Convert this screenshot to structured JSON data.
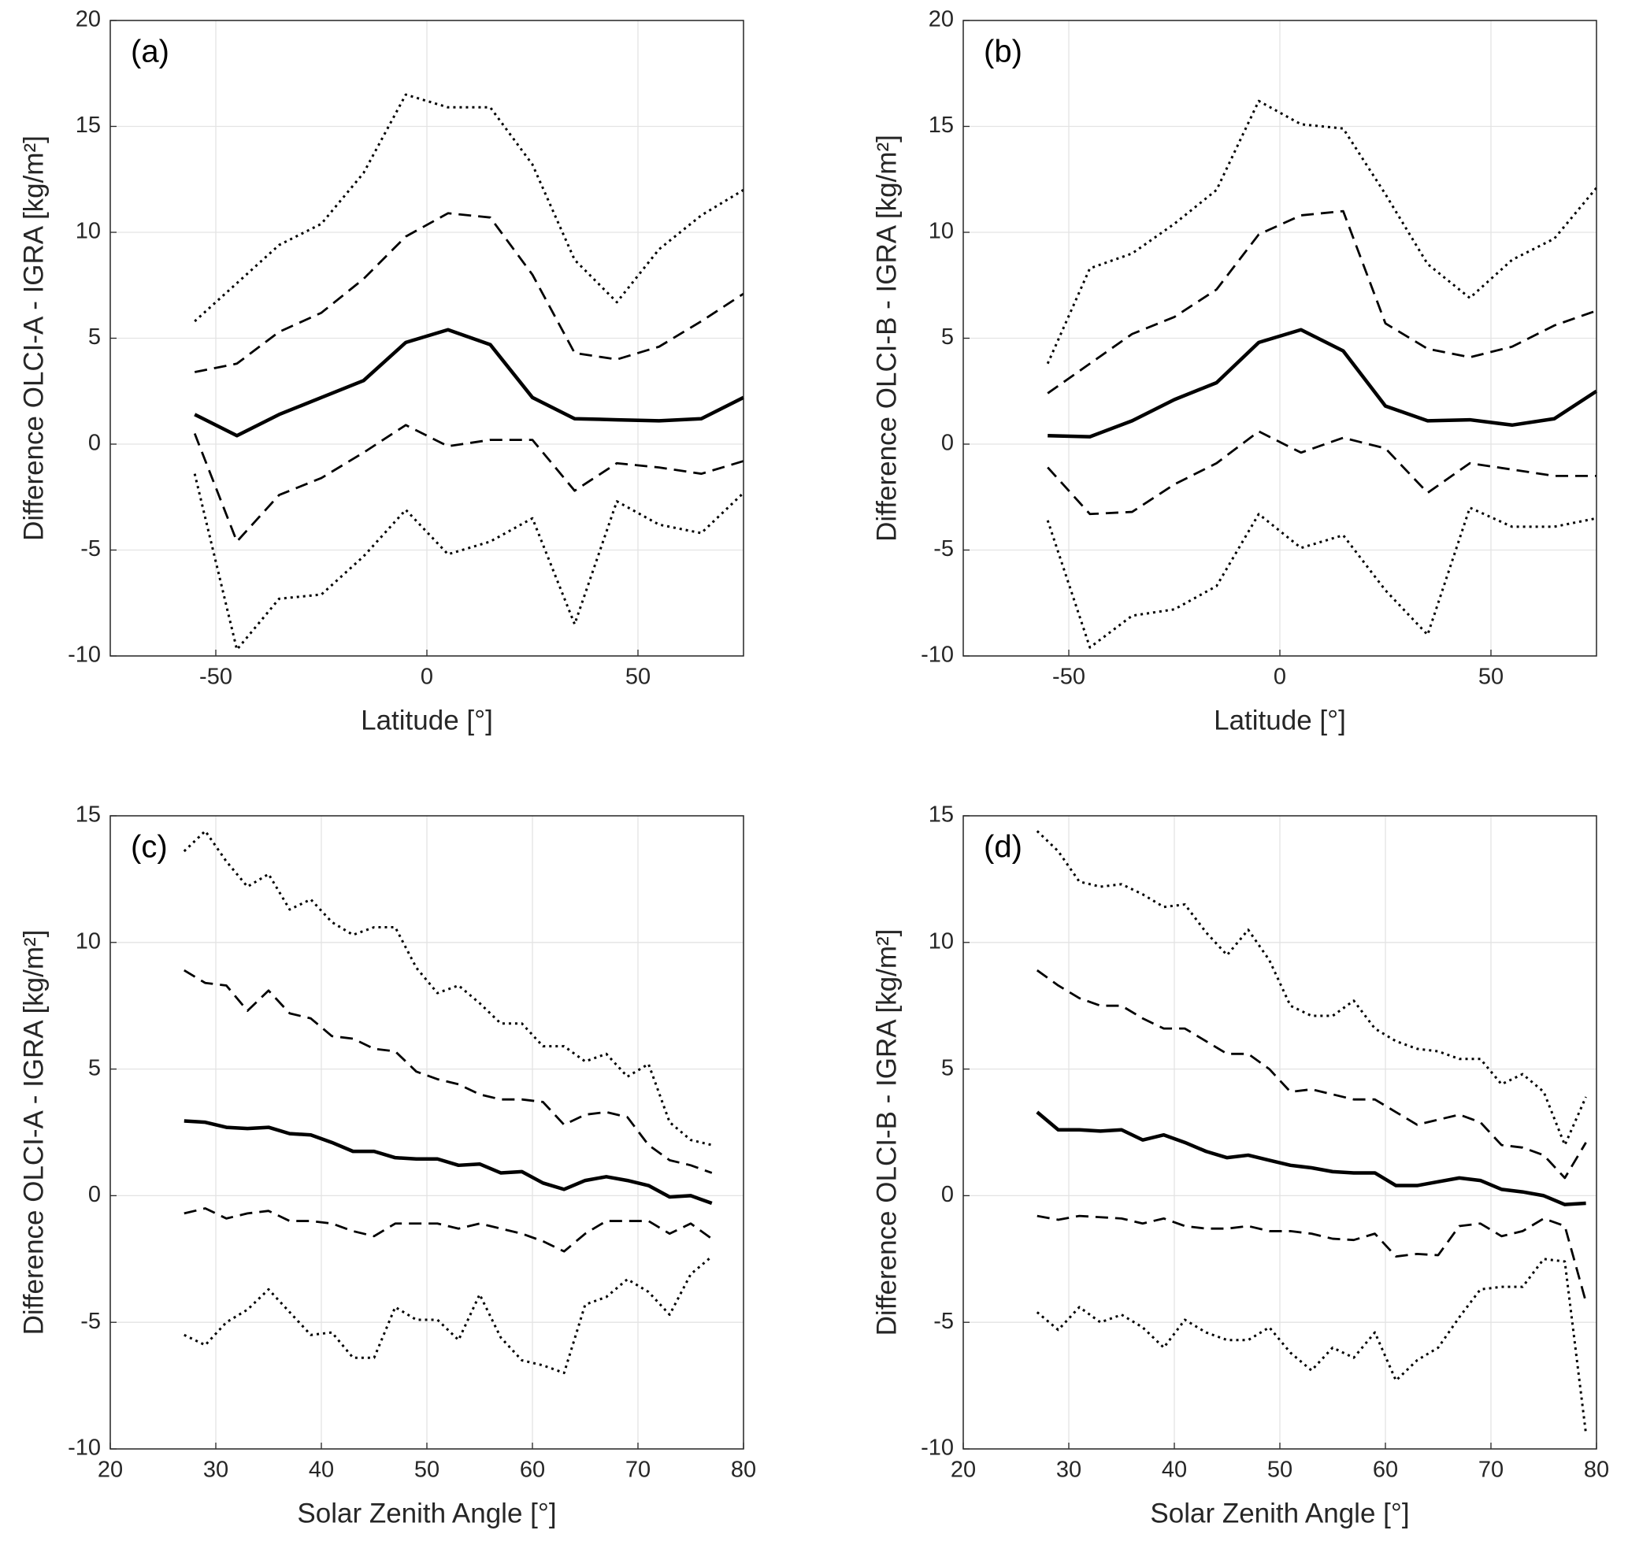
{
  "chart_data": [
    {
      "type": "line",
      "panel_label": "(a)",
      "xlabel": "Latitude [°]",
      "ylabel": "Difference OLCI-A - IGRA [kg/m²]",
      "xlim": [
        -75,
        75
      ],
      "xticks": [
        -50,
        0,
        50
      ],
      "ylim": [
        -10,
        20
      ],
      "yticks": [
        -10,
        -5,
        0,
        5,
        10,
        15,
        20
      ],
      "grid": true,
      "x": [
        -55,
        -45,
        -35,
        -25,
        -15,
        -5,
        5,
        15,
        25,
        35,
        45,
        55,
        65,
        75
      ],
      "series": [
        {
          "color": "#000000",
          "linestyle": "solid",
          "values": [
            1.4,
            0.4,
            1.4,
            2.2,
            3.0,
            4.8,
            5.4,
            4.7,
            2.2,
            1.2,
            1.15,
            1.1,
            1.2,
            2.2
          ]
        },
        {
          "color": "#000000",
          "linestyle": "dashed",
          "values": [
            3.4,
            3.8,
            5.3,
            6.2,
            7.8,
            9.8,
            10.9,
            10.7,
            8.0,
            4.3,
            4.0,
            4.6,
            5.8,
            7.1
          ]
        },
        {
          "color": "#000000",
          "linestyle": "dashed",
          "values": [
            0.5,
            -4.6,
            -2.4,
            -1.6,
            -0.4,
            0.9,
            -0.1,
            0.2,
            0.2,
            -2.2,
            -0.9,
            -1.1,
            -1.4,
            -0.8
          ]
        },
        {
          "color": "#000000",
          "linestyle": "dotted",
          "values": [
            5.8,
            7.6,
            9.4,
            10.4,
            12.8,
            16.5,
            15.9,
            15.9,
            13.2,
            8.7,
            6.7,
            9.2,
            10.8,
            12.0
          ]
        },
        {
          "color": "#000000",
          "linestyle": "dotted",
          "values": [
            -1.4,
            -9.7,
            -7.3,
            -7.1,
            -5.3,
            -3.1,
            -5.2,
            -4.6,
            -3.5,
            -8.5,
            -2.7,
            -3.8,
            -4.2,
            -2.3
          ]
        }
      ]
    },
    {
      "type": "line",
      "panel_label": "(b)",
      "xlabel": "Latitude [°]",
      "ylabel": "Difference OLCI-B - IGRA [kg/m²]",
      "xlim": [
        -75,
        75
      ],
      "xticks": [
        -50,
        0,
        50
      ],
      "ylim": [
        -10,
        20
      ],
      "yticks": [
        -10,
        -5,
        0,
        5,
        10,
        15,
        20
      ],
      "grid": true,
      "x": [
        -55,
        -45,
        -35,
        -25,
        -15,
        -5,
        5,
        15,
        25,
        35,
        45,
        55,
        65,
        75
      ],
      "series": [
        {
          "color": "#000000",
          "linestyle": "solid",
          "values": [
            0.4,
            0.35,
            1.1,
            2.1,
            2.9,
            4.8,
            5.4,
            4.4,
            1.8,
            1.1,
            1.15,
            0.9,
            1.2,
            2.5
          ]
        },
        {
          "color": "#000000",
          "linestyle": "dashed",
          "values": [
            2.4,
            3.8,
            5.2,
            6.0,
            7.3,
            9.9,
            10.8,
            11.0,
            5.7,
            4.5,
            4.1,
            4.6,
            5.6,
            6.3
          ]
        },
        {
          "color": "#000000",
          "linestyle": "dashed",
          "values": [
            -1.1,
            -3.3,
            -3.2,
            -1.9,
            -0.9,
            0.6,
            -0.4,
            0.3,
            -0.2,
            -2.3,
            -0.9,
            -1.2,
            -1.5,
            -1.5
          ]
        },
        {
          "color": "#000000",
          "linestyle": "dotted",
          "values": [
            3.8,
            8.3,
            9.0,
            10.4,
            12.0,
            16.2,
            15.1,
            14.9,
            11.8,
            8.5,
            6.9,
            8.7,
            9.7,
            12.1
          ]
        },
        {
          "color": "#000000",
          "linestyle": "dotted",
          "values": [
            -3.6,
            -9.6,
            -8.1,
            -7.8,
            -6.7,
            -3.3,
            -4.9,
            -4.3,
            -6.9,
            -9.0,
            -3.0,
            -3.9,
            -3.9,
            -3.5
          ]
        }
      ]
    },
    {
      "type": "line",
      "panel_label": "(c)",
      "xlabel": "Solar Zenith Angle [°]",
      "ylabel": "Difference OLCI-A - IGRA [kg/m²]",
      "xlim": [
        20,
        80
      ],
      "xticks": [
        20,
        30,
        40,
        50,
        60,
        70,
        80
      ],
      "ylim": [
        -10,
        15
      ],
      "yticks": [
        -10,
        -5,
        0,
        5,
        10,
        15
      ],
      "grid": true,
      "x": [
        27,
        29,
        31,
        33,
        35,
        37,
        39,
        41,
        43,
        45,
        47,
        49,
        51,
        53,
        55,
        57,
        59,
        61,
        63,
        65,
        67,
        69,
        71,
        73,
        75,
        77
      ],
      "series": [
        {
          "color": "#000000",
          "linestyle": "solid",
          "values": [
            2.95,
            2.9,
            2.7,
            2.65,
            2.7,
            2.45,
            2.4,
            2.1,
            1.75,
            1.75,
            1.5,
            1.45,
            1.45,
            1.2,
            1.25,
            0.9,
            0.95,
            0.5,
            0.25,
            0.6,
            0.75,
            0.6,
            0.4,
            -0.05,
            0.0,
            -0.3
          ]
        },
        {
          "color": "#000000",
          "linestyle": "dashed",
          "values": [
            8.9,
            8.4,
            8.3,
            7.3,
            8.1,
            7.2,
            7.0,
            6.3,
            6.2,
            5.8,
            5.7,
            4.9,
            4.6,
            4.4,
            4.0,
            3.8,
            3.8,
            3.7,
            2.8,
            3.2,
            3.3,
            3.1,
            2.0,
            1.4,
            1.2,
            0.9
          ]
        },
        {
          "color": "#000000",
          "linestyle": "dashed",
          "values": [
            -0.7,
            -0.5,
            -0.9,
            -0.7,
            -0.6,
            -1.0,
            -1.0,
            -1.1,
            -1.4,
            -1.6,
            -1.1,
            -1.1,
            -1.1,
            -1.3,
            -1.1,
            -1.3,
            -1.5,
            -1.8,
            -2.2,
            -1.5,
            -1.0,
            -1.0,
            -1.0,
            -1.5,
            -1.1,
            -1.7
          ]
        },
        {
          "color": "#000000",
          "linestyle": "dotted",
          "values": [
            13.6,
            14.4,
            13.2,
            12.2,
            12.7,
            11.3,
            11.7,
            10.8,
            10.3,
            10.6,
            10.6,
            9.0,
            8.0,
            8.3,
            7.6,
            6.8,
            6.8,
            5.9,
            5.9,
            5.3,
            5.6,
            4.7,
            5.2,
            2.9,
            2.2,
            2.0
          ]
        },
        {
          "color": "#000000",
          "linestyle": "dotted",
          "values": [
            -5.5,
            -5.9,
            -5.0,
            -4.5,
            -3.7,
            -4.6,
            -5.5,
            -5.4,
            -6.4,
            -6.4,
            -4.4,
            -4.9,
            -4.9,
            -5.7,
            -3.9,
            -5.6,
            -6.5,
            -6.7,
            -7.0,
            -4.3,
            -4.0,
            -3.3,
            -3.8,
            -4.7,
            -3.1,
            -2.4
          ]
        }
      ]
    },
    {
      "type": "line",
      "panel_label": "(d)",
      "xlabel": "Solar Zenith Angle [°]",
      "ylabel": "Difference OLCI-B - IGRA [kg/m²]",
      "xlim": [
        20,
        80
      ],
      "xticks": [
        20,
        30,
        40,
        50,
        60,
        70,
        80
      ],
      "ylim": [
        -10,
        15
      ],
      "yticks": [
        -10,
        -5,
        0,
        5,
        10,
        15
      ],
      "grid": true,
      "x": [
        27,
        29,
        31,
        33,
        35,
        37,
        39,
        41,
        43,
        45,
        47,
        49,
        51,
        53,
        55,
        57,
        59,
        61,
        63,
        65,
        67,
        69,
        71,
        73,
        75,
        77,
        79
      ],
      "series": [
        {
          "color": "#000000",
          "linestyle": "solid",
          "values": [
            3.3,
            2.6,
            2.6,
            2.55,
            2.6,
            2.2,
            2.4,
            2.1,
            1.75,
            1.5,
            1.6,
            1.4,
            1.2,
            1.1,
            0.95,
            0.9,
            0.9,
            0.4,
            0.4,
            0.55,
            0.7,
            0.6,
            0.25,
            0.15,
            0.0,
            -0.35,
            -0.3
          ]
        },
        {
          "color": "#000000",
          "linestyle": "dashed",
          "values": [
            8.9,
            8.3,
            7.8,
            7.5,
            7.5,
            7.0,
            6.6,
            6.6,
            6.1,
            5.6,
            5.6,
            5.0,
            4.1,
            4.2,
            4.0,
            3.8,
            3.8,
            3.3,
            2.8,
            3.0,
            3.2,
            2.9,
            2.0,
            1.9,
            1.6,
            0.7,
            2.1
          ]
        },
        {
          "color": "#000000",
          "linestyle": "dashed",
          "values": [
            -0.8,
            -0.95,
            -0.8,
            -0.85,
            -0.9,
            -1.1,
            -0.9,
            -1.2,
            -1.3,
            -1.3,
            -1.2,
            -1.4,
            -1.4,
            -1.5,
            -1.7,
            -1.75,
            -1.5,
            -2.4,
            -2.3,
            -2.35,
            -1.2,
            -1.1,
            -1.6,
            -1.4,
            -0.9,
            -1.2,
            -4.2
          ]
        },
        {
          "color": "#000000",
          "linestyle": "dotted",
          "values": [
            14.4,
            13.6,
            12.4,
            12.2,
            12.3,
            11.9,
            11.4,
            11.5,
            10.4,
            9.5,
            10.5,
            9.3,
            7.5,
            7.1,
            7.1,
            7.7,
            6.6,
            6.1,
            5.8,
            5.7,
            5.4,
            5.4,
            4.4,
            4.8,
            4.1,
            2.0,
            3.9
          ]
        },
        {
          "color": "#000000",
          "linestyle": "dotted",
          "values": [
            -4.6,
            -5.3,
            -4.4,
            -5.0,
            -4.7,
            -5.2,
            -6.0,
            -4.9,
            -5.4,
            -5.7,
            -5.7,
            -5.2,
            -6.2,
            -6.9,
            -6.0,
            -6.4,
            -5.4,
            -7.3,
            -6.5,
            -6.0,
            -4.8,
            -3.7,
            -3.6,
            -3.6,
            -2.5,
            -2.6,
            -9.4
          ]
        }
      ]
    }
  ]
}
